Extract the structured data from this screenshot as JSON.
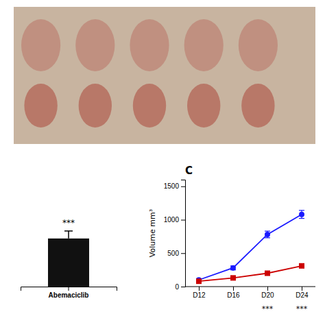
{
  "chart_data": [
    {
      "type": "bar",
      "categories": [
        "Abemaciclib"
      ],
      "values": [
        0.45
      ],
      "errors": [
        0.07
      ],
      "color": "#111111",
      "ylim": [
        0,
        1.0
      ],
      "tick_labels": "x",
      "annotation": "***"
    },
    {
      "type": "line",
      "title": "C",
      "categories": [
        "D12",
        "D16",
        "D20",
        "D24"
      ],
      "series": [
        {
          "color": "#1a1aff",
          "marker": "circle",
          "values": [
            100,
            280,
            780,
            1080
          ],
          "errors": [
            20,
            30,
            50,
            60
          ]
        },
        {
          "color": "#cc0000",
          "marker": "square",
          "values": [
            80,
            130,
            200,
            310
          ],
          "errors": [
            10,
            15,
            20,
            25
          ]
        }
      ],
      "ylabel": "Volume mm³",
      "ylim": [
        0,
        1600
      ],
      "yticks": [
        0,
        500,
        1000,
        1500
      ],
      "annotations": [
        {
          "text": "***",
          "category": "D20"
        },
        {
          "text": "***",
          "category": "D24"
        }
      ]
    }
  ]
}
